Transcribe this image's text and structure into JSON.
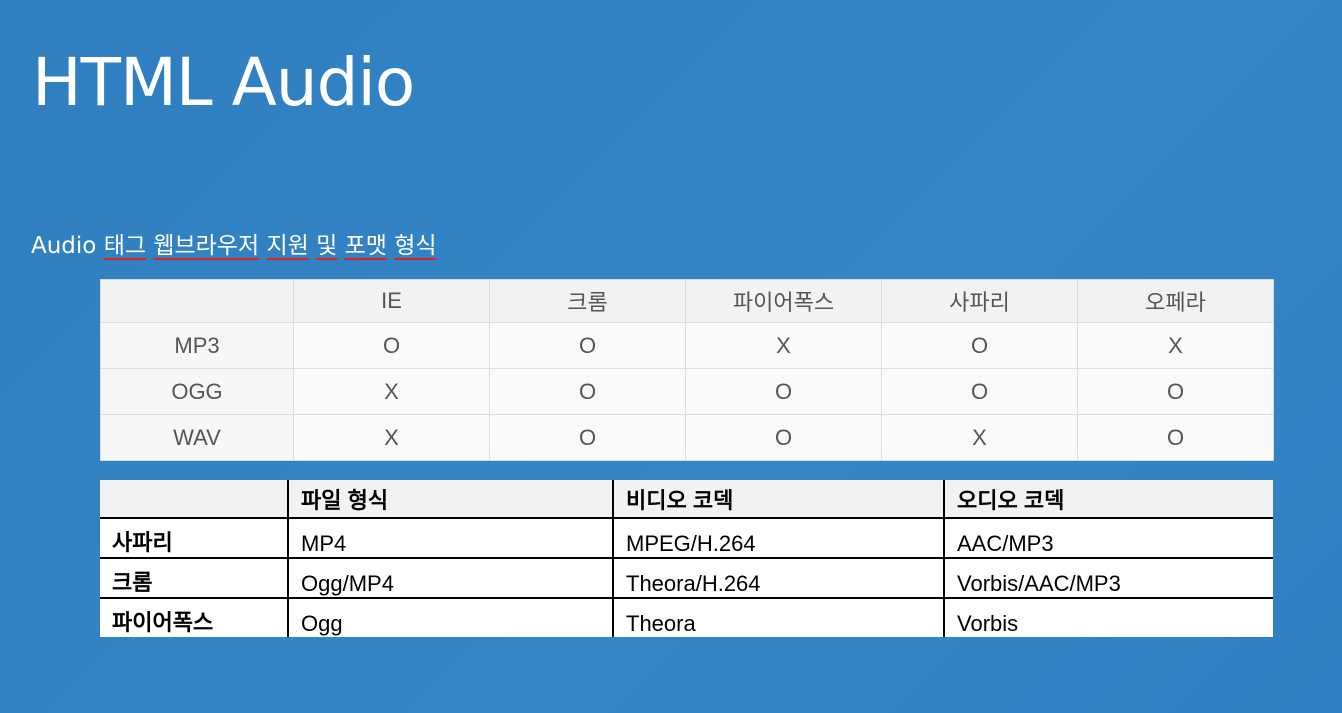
{
  "title": "HTML Audio",
  "subtitle": {
    "prefix": "Audio",
    "words": [
      "태그",
      "웹브라우저",
      "지원",
      "및",
      "포맷",
      "형식"
    ]
  },
  "support_table": {
    "headers": [
      "",
      "IE",
      "크롬",
      "파이어폭스",
      "사파리",
      "오페라"
    ],
    "rows": [
      {
        "format": "MP3",
        "values": [
          "O",
          "O",
          "X",
          "O",
          "X"
        ]
      },
      {
        "format": "OGG",
        "values": [
          "X",
          "O",
          "O",
          "O",
          "O"
        ]
      },
      {
        "format": "WAV",
        "values": [
          "X",
          "O",
          "O",
          "X",
          "O"
        ]
      }
    ]
  },
  "codec_table": {
    "headers": [
      "",
      "파일 형식",
      "비디오 코덱",
      "오디오 코덱"
    ],
    "rows": [
      {
        "browser": "사파리",
        "file": "MP4",
        "video": "MPEG/H.264",
        "audio": "AAC/MP3"
      },
      {
        "browser": "크롬",
        "file": "Ogg/MP4",
        "video": "Theora/H.264",
        "audio": "Vorbis/AAC/MP3"
      },
      {
        "browser": "파이어폭스",
        "file": "Ogg",
        "video": "Theora",
        "audio": "Vorbis"
      }
    ]
  }
}
